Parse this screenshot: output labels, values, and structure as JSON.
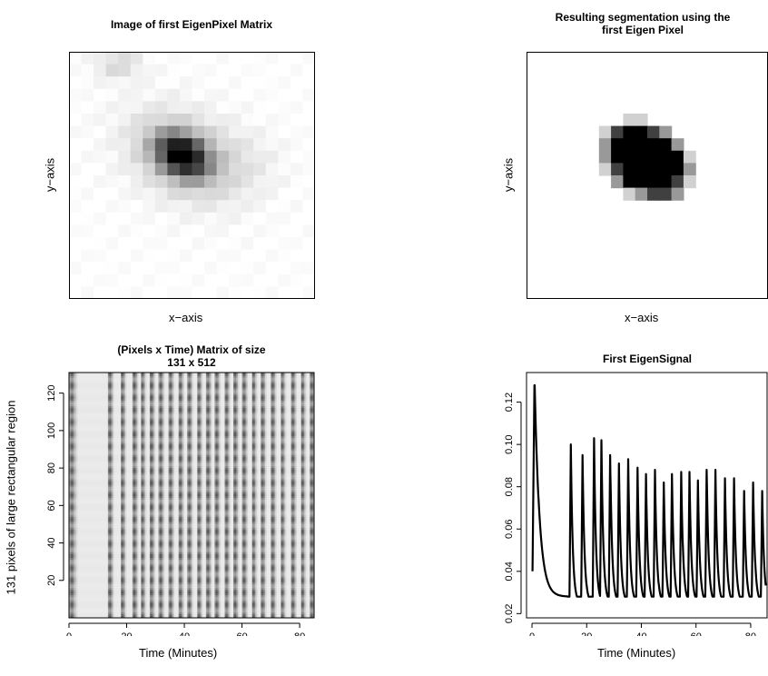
{
  "chart_data": [
    {
      "type": "heatmap",
      "title": "Image of first EigenPixel Matrix",
      "xlabel": "x−axis",
      "ylabel": "y−axis",
      "description_values": {
        "grid": [
          20,
          20
        ],
        "blob_center": [
          0.46,
          0.42
        ],
        "blob_peak_intensity": 1.0
      }
    },
    {
      "type": "heatmap",
      "title": "Resulting segmentation using the\nfirst Eigen Pixel",
      "xlabel": "x−axis",
      "ylabel": "y−axis",
      "description_values": {
        "grid": [
          20,
          20
        ],
        "blob_center": [
          0.5,
          0.44
        ]
      }
    },
    {
      "type": "heatmap",
      "title": "(Pixels x Time) Matrix of size\n131 x 512",
      "xlabel": "Time (Minutes)",
      "ylabel": "131 pixels of large rectangular region",
      "xlim": [
        0,
        85
      ],
      "ylim": [
        0,
        131
      ],
      "xticks": [
        "0",
        "20",
        "40",
        "60",
        "80"
      ],
      "yticks": [
        "20",
        "40",
        "60",
        "80",
        "100",
        "120"
      ]
    },
    {
      "type": "line",
      "title": "First EigenSignal",
      "xlabel": "Time (Minutes)",
      "ylabel": "",
      "xlim": [
        -2,
        86
      ],
      "ylim": [
        0.018,
        0.134
      ],
      "xticks": [
        "0",
        "20",
        "40",
        "60",
        "80"
      ],
      "yticks": [
        "0.02",
        "0.04",
        "0.06",
        "0.08",
        "0.10",
        "0.12"
      ],
      "peaks": [
        {
          "x": 1.0,
          "y": 0.128
        },
        {
          "x": 14.2,
          "y": 0.1
        },
        {
          "x": 18.5,
          "y": 0.095
        },
        {
          "x": 22.7,
          "y": 0.103
        },
        {
          "x": 25.4,
          "y": 0.102
        },
        {
          "x": 28.6,
          "y": 0.095
        },
        {
          "x": 31.8,
          "y": 0.091
        },
        {
          "x": 35.2,
          "y": 0.093
        },
        {
          "x": 38.6,
          "y": 0.089
        },
        {
          "x": 41.7,
          "y": 0.086
        },
        {
          "x": 45.0,
          "y": 0.088
        },
        {
          "x": 48.2,
          "y": 0.082
        },
        {
          "x": 51.2,
          "y": 0.086
        },
        {
          "x": 54.6,
          "y": 0.087
        },
        {
          "x": 57.6,
          "y": 0.087
        },
        {
          "x": 60.7,
          "y": 0.083
        },
        {
          "x": 63.9,
          "y": 0.088
        },
        {
          "x": 67.1,
          "y": 0.088
        },
        {
          "x": 70.6,
          "y": 0.084
        },
        {
          "x": 73.9,
          "y": 0.084
        },
        {
          "x": 77.6,
          "y": 0.078
        },
        {
          "x": 80.9,
          "y": 0.082
        },
        {
          "x": 84.2,
          "y": 0.078
        }
      ]
    }
  ]
}
